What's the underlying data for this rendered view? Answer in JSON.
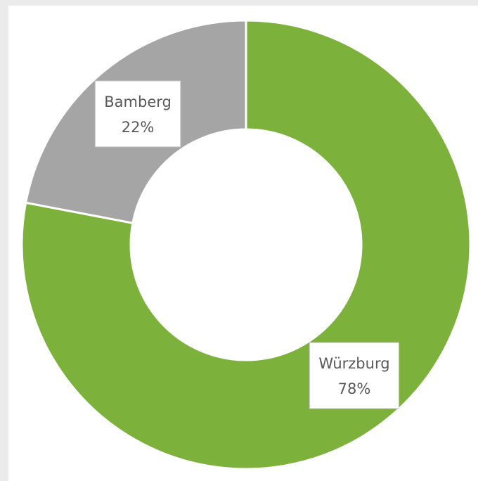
{
  "chart_data": {
    "type": "donut",
    "categories": [
      "Würzburg",
      "Bamberg"
    ],
    "values": [
      78,
      22
    ],
    "value_labels": [
      "78%",
      "22%"
    ],
    "colors": [
      "#7cb13b",
      "#a5a5a5"
    ]
  }
}
